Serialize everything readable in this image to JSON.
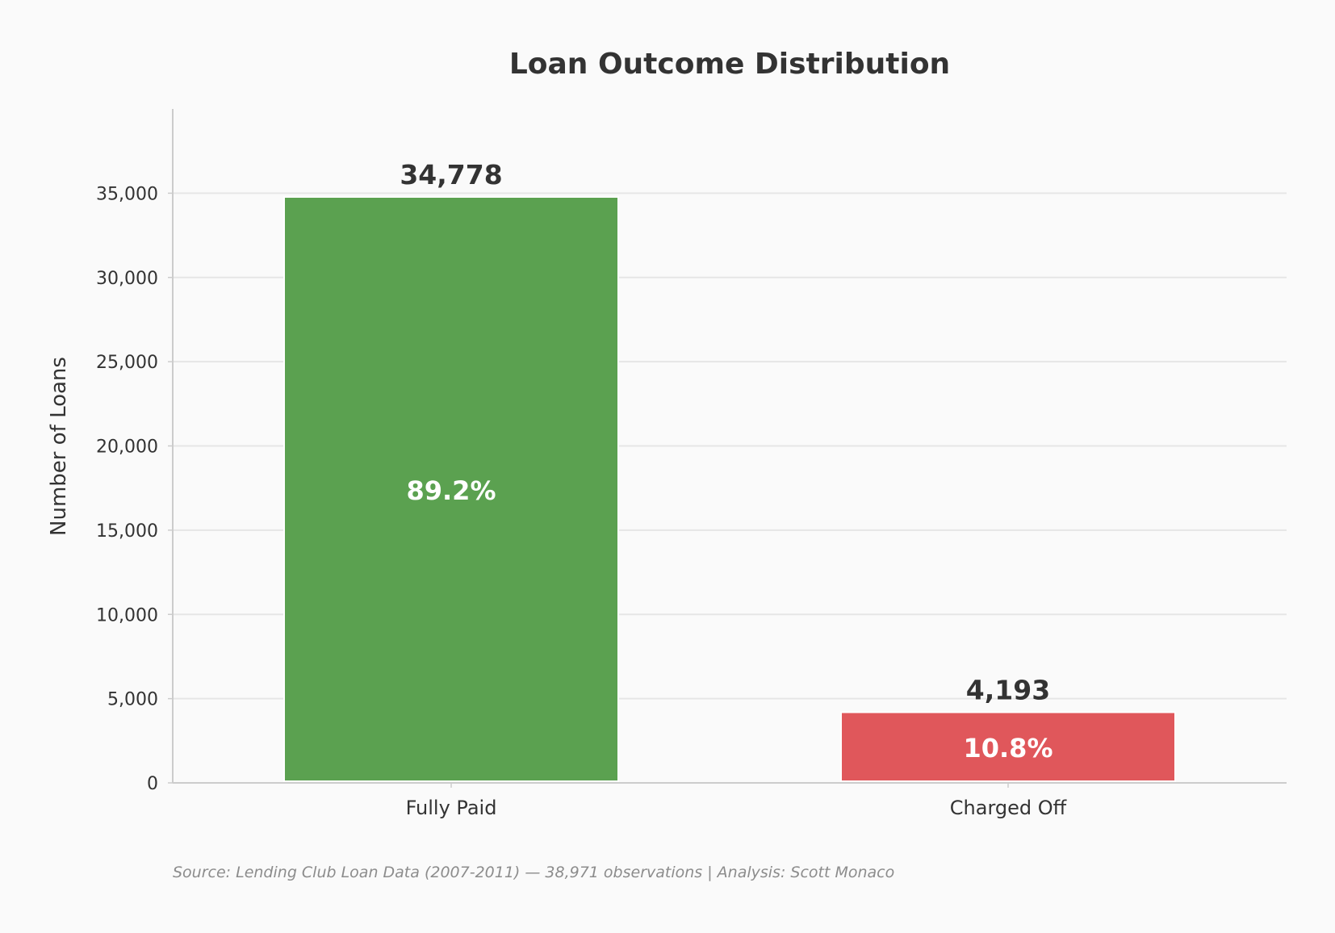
{
  "chart_data": {
    "type": "bar",
    "title": "Loan Outcome Distribution",
    "xlabel": "",
    "ylabel": "Number of Loans",
    "categories": [
      "Fully Paid",
      "Charged Off"
    ],
    "values": [
      34778,
      4193
    ],
    "value_labels": [
      "34,778",
      "4,193"
    ],
    "percent_labels": [
      "89.2%",
      "10.8%"
    ],
    "colors": [
      "#5ba150",
      "#e0575b"
    ],
    "ylim": [
      0,
      40000
    ],
    "yticks": [
      0,
      5000,
      10000,
      15000,
      20000,
      25000,
      30000,
      35000
    ],
    "ytick_labels": [
      "0",
      "5,000",
      "10,000",
      "15,000",
      "20,000",
      "25,000",
      "30,000",
      "35,000"
    ],
    "grid": true,
    "source_note": "Source: Lending Club Loan Data (2007-2011) — 38,971 observations | Analysis: Scott Monaco"
  }
}
